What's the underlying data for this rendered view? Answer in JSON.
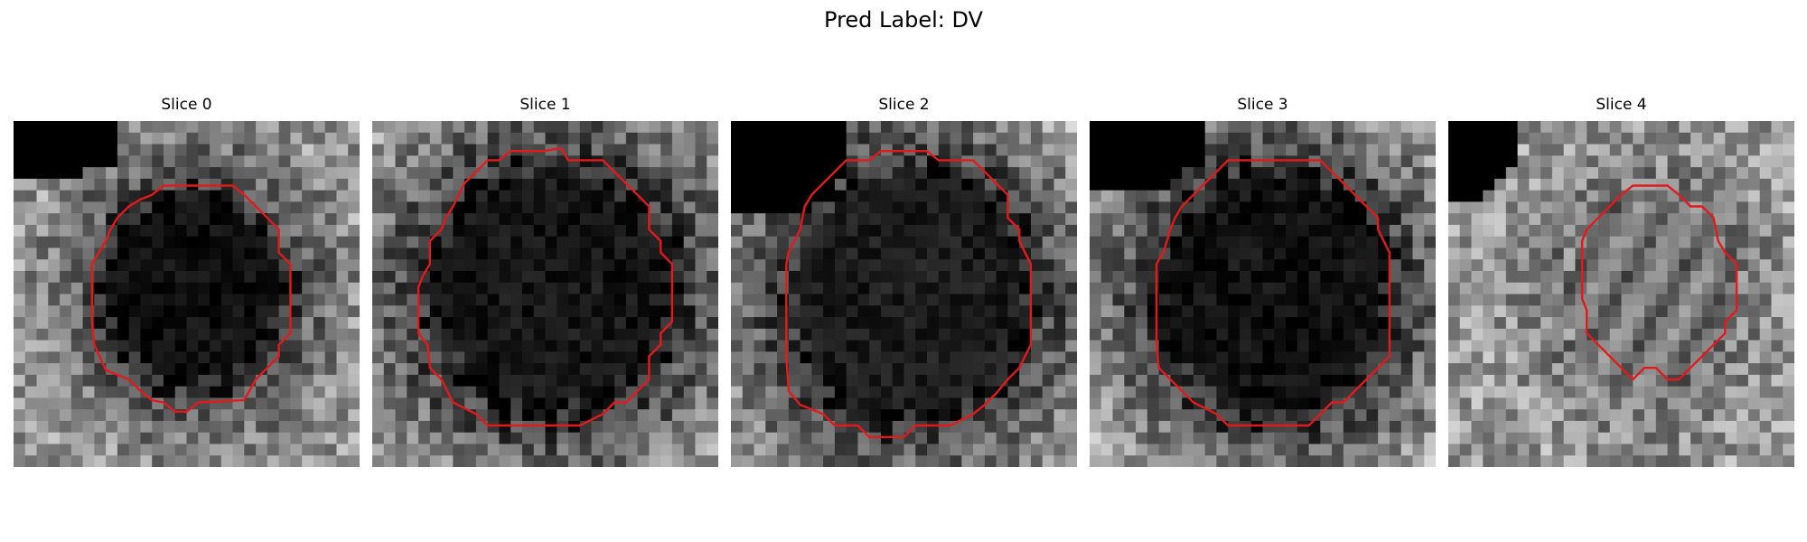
{
  "figure": {
    "title": "Pred Label: DV"
  },
  "panels": [
    {
      "title": "Slice 0"
    },
    {
      "title": "Slice 1"
    },
    {
      "title": "Slice 2"
    },
    {
      "title": "Slice 3"
    },
    {
      "title": "Slice 4"
    }
  ],
  "colors": {
    "contour": "#e31a1c",
    "background": "#ffffff",
    "corner_mask": "#000000"
  }
}
